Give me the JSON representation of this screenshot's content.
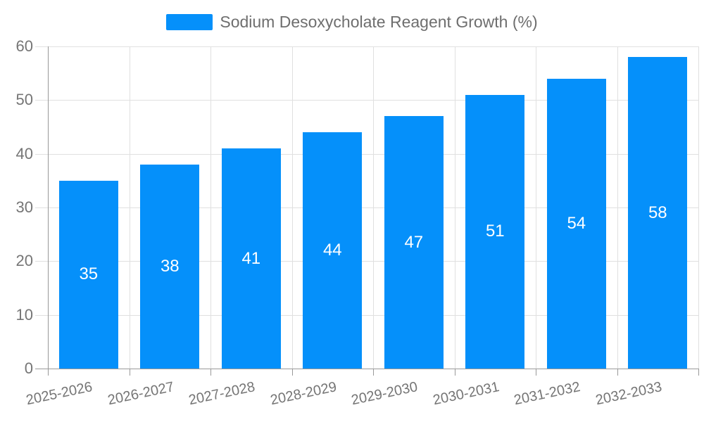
{
  "chart_data": {
    "type": "bar",
    "title": "Sodium Desoxycholate Reagent Growth (%)",
    "categories": [
      "2025-2026",
      "2026-2027",
      "2027-2028",
      "2028-2029",
      "2029-2030",
      "2030-2031",
      "2031-2032",
      "2032-2033"
    ],
    "values": [
      35,
      38,
      41,
      44,
      47,
      51,
      54,
      58
    ],
    "xlabel": "",
    "ylabel": "",
    "ylim": [
      0,
      60
    ],
    "yticks": [
      0,
      10,
      20,
      30,
      40,
      50,
      60
    ],
    "grid": true,
    "legend_position": "top-center",
    "legend_swatch_icon": "bar-swatch",
    "colors": {
      "bar": "#0590FA",
      "value_label": "#FFFFFF",
      "axis_line": "#999999",
      "grid_line": "#E0E0E0",
      "tick_label": "#757575",
      "legend_text": "#6E6E6E",
      "background": "#FFFFFF"
    }
  }
}
